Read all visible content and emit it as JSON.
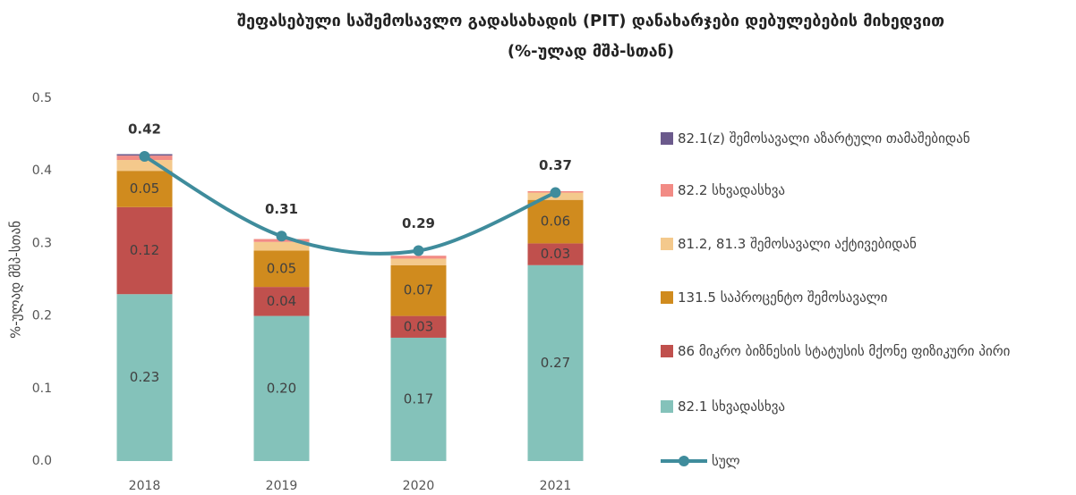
{
  "chart_data": {
    "type": "stacked_bar_line",
    "title": "შეფასებული საშემოსავლო გადასახადის (PIT)  დანახარჯები დებულებების მიხედვით",
    "subtitle": "(%-ულად მშპ-სთან)",
    "y_label": "%-ულად მშპ-სთან",
    "categories": [
      "2018",
      "2019",
      "2020",
      "2021"
    ],
    "ylim": [
      0,
      0.5
    ],
    "yticks": [
      {
        "value": 0,
        "label": "0.0"
      },
      0.1,
      0.2,
      0.3,
      0.4,
      0.5
    ],
    "series": [
      {
        "name": "82.1 სხვადასხვა",
        "color": "#84c2ba",
        "values": [
          0.23,
          0.2,
          0.17,
          0.27
        ],
        "value_labels": [
          "0.23",
          "0.20",
          "0.17",
          "0.27"
        ]
      },
      {
        "name": "86 მიკრო ბიზნესის სტატუსის მქონე ფიზიკური პირი",
        "color": "#c0504d",
        "values": [
          0.12,
          0.04,
          0.03,
          0.03
        ],
        "value_labels": [
          "0.12",
          "0.04",
          "0.03",
          "0.03"
        ]
      },
      {
        "name": "131.5 საპროცენტო შემოსავალი",
        "color": "#d08b1e",
        "values": [
          0.05,
          0.05,
          0.07,
          0.06
        ],
        "value_labels": [
          "0.05",
          "0.05",
          "0.07",
          "0.06"
        ]
      },
      {
        "name": "81.2, 81.3 შემოსავალი აქტივებიდან",
        "color": "#f4c98c",
        "values": [
          0.015,
          0.012,
          0.009,
          0.01
        ]
      },
      {
        "name": "82.2 სხვადასხვა",
        "color": "#f28b85",
        "values": [
          0.006,
          0.004,
          0.004,
          0.002
        ]
      },
      {
        "name": "82.1(z) შემოსავალი აზარტული თამაშებიდან",
        "color": "#6b5a8c",
        "values": [
          0.002,
          0,
          0,
          0
        ]
      },
      {
        "name": "სულ",
        "type": "line",
        "color": "#3f8c9c",
        "values": [
          0.42,
          0.31,
          0.29,
          0.37
        ],
        "value_labels": [
          "0.42",
          "0.31",
          "0.29",
          "0.37"
        ]
      }
    ]
  }
}
